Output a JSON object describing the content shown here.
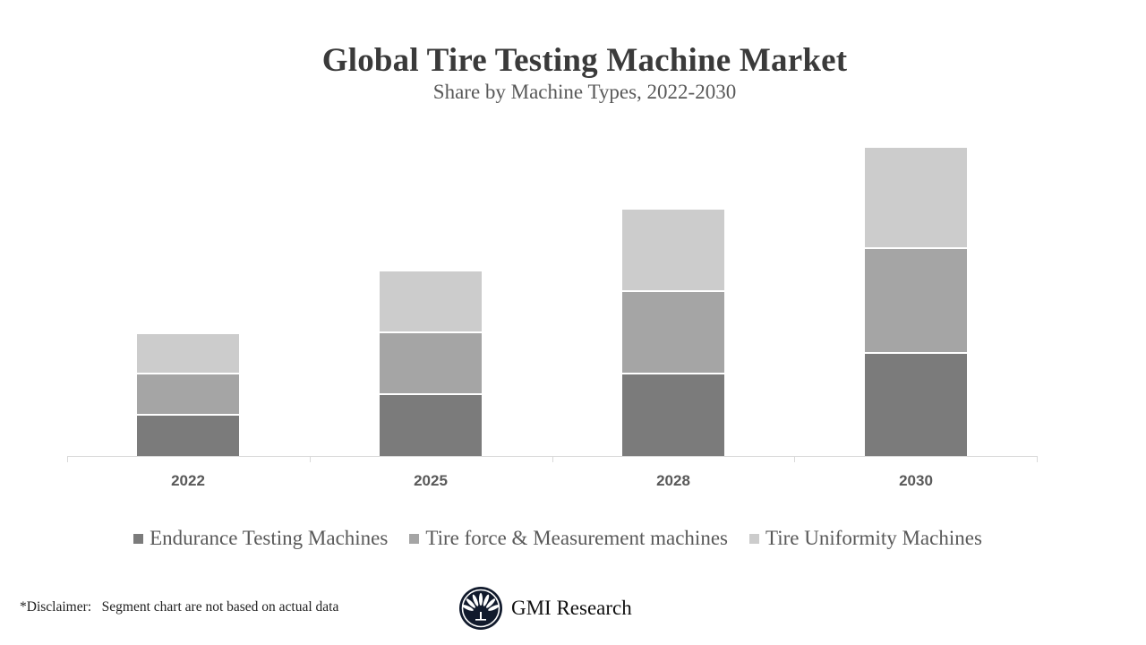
{
  "header": {
    "title": "Global Tire Testing Machine Market",
    "subtitle": "Share by Machine Types, 2022-2030"
  },
  "chart_data": {
    "type": "bar",
    "stacked": true,
    "title": "Global Tire Testing Machine Market",
    "subtitle": "Share by Machine Types, 2022-2030",
    "xlabel": "",
    "ylabel": "",
    "y_axis_visible": false,
    "grid": false,
    "legend_position": "bottom",
    "value_unit": "relative (pixel-estimated; no axis scale shown)",
    "categories": [
      "2022",
      "2025",
      "2028",
      "2030"
    ],
    "series": [
      {
        "name": "Endurance Testing Machines",
        "color": "#7b7b7b",
        "values": [
          45,
          68,
          91,
          114
        ]
      },
      {
        "name": "Tire force & Measurement machines",
        "color": "#a5a5a5",
        "values": [
          46,
          69,
          92,
          117
        ]
      },
      {
        "name": "Tire Uniformity Machines",
        "color": "#cccccc",
        "values": [
          45,
          69,
          92,
          113
        ]
      }
    ],
    "totals": [
      136,
      206,
      275,
      344
    ],
    "ylim": [
      0,
      350
    ]
  },
  "legend": {
    "items": [
      {
        "label": "Endurance Testing Machines",
        "color": "#7b7b7b"
      },
      {
        "label": "Tire force & Measurement machines",
        "color": "#a5a5a5"
      },
      {
        "label": "Tire Uniformity Machines",
        "color": "#cccccc"
      }
    ]
  },
  "footer": {
    "disclaimer": "*Disclaimer:   Segment chart are not based on actual data",
    "brand": "GMI Research",
    "logo_icon": "fan-leaf-circle-logo",
    "logo_color": "#111a2c"
  }
}
